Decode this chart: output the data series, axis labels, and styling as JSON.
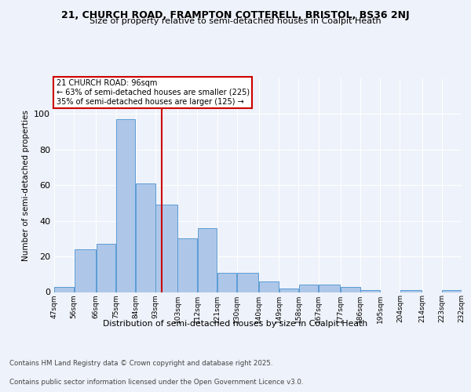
{
  "title1": "21, CHURCH ROAD, FRAMPTON COTTERELL, BRISTOL, BS36 2NJ",
  "title2": "Size of property relative to semi-detached houses in Coalpit Heath",
  "xlabel": "Distribution of semi-detached houses by size in Coalpit Heath",
  "ylabel": "Number of semi-detached properties",
  "footer1": "Contains HM Land Registry data © Crown copyright and database right 2025.",
  "footer2": "Contains public sector information licensed under the Open Government Licence v3.0.",
  "annotation_title": "21 CHURCH ROAD: 96sqm",
  "annotation_line1": "← 63% of semi-detached houses are smaller (225)",
  "annotation_line2": "35% of semi-detached houses are larger (125) →",
  "property_size": 96,
  "vline_x": 96,
  "bin_edges": [
    47,
    56,
    66,
    75,
    84,
    93,
    103,
    112,
    121,
    130,
    140,
    149,
    158,
    167,
    177,
    186,
    195,
    204,
    214,
    223,
    232
  ],
  "bin_labels": [
    "47sqm",
    "56sqm",
    "66sqm",
    "75sqm",
    "84sqm",
    "93sqm",
    "103sqm",
    "112sqm",
    "121sqm",
    "130sqm",
    "140sqm",
    "149sqm",
    "158sqm",
    "167sqm",
    "177sqm",
    "186sqm",
    "195sqm",
    "204sqm",
    "214sqm",
    "223sqm",
    "232sqm"
  ],
  "counts": [
    3,
    24,
    27,
    97,
    61,
    49,
    30,
    36,
    11,
    11,
    6,
    2,
    4,
    4,
    3,
    1,
    0,
    1,
    0,
    1
  ],
  "bar_facecolor": "#aec7e8",
  "bar_edgecolor": "#5b9bd5",
  "vline_color": "#cc0000",
  "annotation_box_edgecolor": "#cc0000",
  "background_color": "#eef2fa",
  "grid_color": "#ffffff",
  "ylim": [
    0,
    120
  ],
  "yticks": [
    0,
    20,
    40,
    60,
    80,
    100
  ]
}
